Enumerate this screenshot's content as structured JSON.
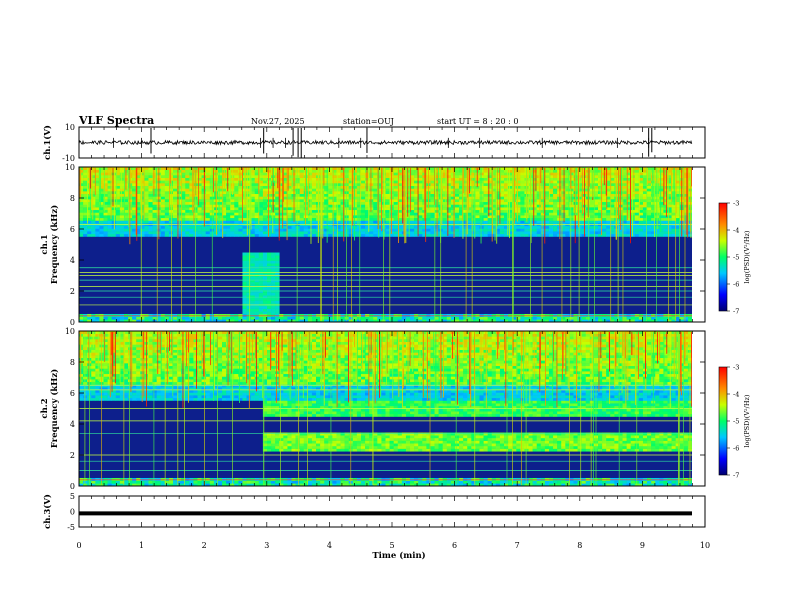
{
  "header": {
    "title": "VLF Spectra",
    "date": "Nov.27, 2025",
    "station": "station=OUJ",
    "start_time": "start UT =  8 : 20 : 0"
  },
  "colors": {
    "spectrogram_low": "#0d1f8c",
    "spectrogram_high": "#c21010",
    "signal_trace": "#000000"
  },
  "chart_data": [
    {
      "id": "ch1-waveform",
      "type": "line",
      "ylabel": "ch.1(V)",
      "ylim": [
        -10,
        10
      ],
      "y_tick_labels": [
        "10",
        "-10"
      ],
      "description_level": 0
    },
    {
      "id": "ch1-spectrogram",
      "type": "heatmap",
      "ylabel": "ch.1\nFrequency (kHz)",
      "ylabel_line1": "ch.1",
      "ylabel_line2": "Frequency (kHz)",
      "xlim": [
        0,
        10
      ],
      "ylim": [
        0,
        10
      ],
      "y_tick_labels": [
        "0",
        "2",
        "4",
        "6",
        "8",
        "10"
      ],
      "colorbar": {
        "label": "log(PSD)(V²/Hz)",
        "range": [
          -7,
          -3
        ],
        "tick_labels": [
          "-3",
          "-4",
          "-5",
          "-6",
          "-7"
        ]
      }
    },
    {
      "id": "ch2-spectrogram",
      "type": "heatmap",
      "ylabel_line1": "ch.2",
      "ylabel_line2": "Frequency (kHz)",
      "xlim": [
        0,
        10
      ],
      "ylim": [
        0,
        10
      ],
      "y_tick_labels": [
        "0",
        "2",
        "4",
        "6",
        "8",
        "10"
      ],
      "colorbar": {
        "label": "log(PSD)(V²/Hz)",
        "range": [
          -7,
          -3
        ],
        "tick_labels": [
          "-3",
          "-4",
          "-5",
          "-6",
          "-7"
        ]
      }
    },
    {
      "id": "ch3-waveform",
      "type": "line",
      "ylabel": "ch.3(V)",
      "ylim": [
        -5,
        5
      ],
      "y_tick_labels": [
        "5",
        "0",
        "-5"
      ],
      "level": -0.6
    }
  ],
  "x_axis": {
    "label": "Time (min)",
    "range": [
      0,
      10
    ],
    "tick_labels": [
      "0",
      "1",
      "2",
      "3",
      "4",
      "5",
      "6",
      "7",
      "8",
      "9",
      "10"
    ]
  }
}
